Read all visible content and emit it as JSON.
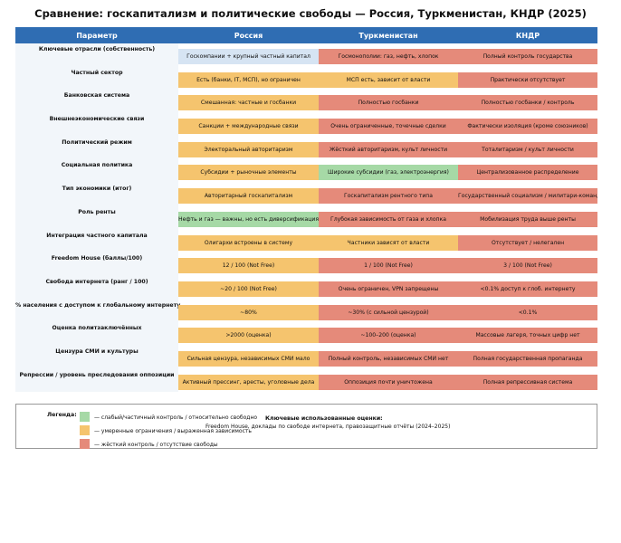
{
  "title": "Сравнение: госкапитализм и политические свободы — Россия, Туркменистан, КНДР (2025)",
  "colors": {
    "header": "#2f6db3",
    "blue": "#d6e4f3",
    "green": "#a6d9a6",
    "orange": "#f5c46e",
    "red": "#e58a7a",
    "param_bg": "#f2f6fa"
  },
  "chart_data": {
    "type": "table",
    "columns": [
      "Параметр",
      "Россия",
      "Туркменистан",
      "КНДР"
    ],
    "rows": [
      {
        "param": "Ключевые отрасли (собственность)",
        "cells": [
          {
            "text": "Госкомпании + крупный частный капитал",
            "color": "blue"
          },
          {
            "text": "Госмонополии: газ, нефть, хлопок",
            "color": "red"
          },
          {
            "text": "Полный контроль государства",
            "color": "red"
          }
        ]
      },
      {
        "param": "Частный сектор",
        "cells": [
          {
            "text": "Есть (банки, IT, МСП), но ограничен",
            "color": "orange"
          },
          {
            "text": "МСП есть, зависит от власти",
            "color": "orange"
          },
          {
            "text": "Практически отсутствует",
            "color": "red"
          }
        ]
      },
      {
        "param": "Банковская система",
        "cells": [
          {
            "text": "Смешанная: частные и госбанки",
            "color": "orange"
          },
          {
            "text": "Полностью госбанки",
            "color": "red"
          },
          {
            "text": "Полностью госбанки / контроль",
            "color": "red"
          }
        ]
      },
      {
        "param": "Внешнеэкономические связи",
        "cells": [
          {
            "text": "Санкции + международные связи",
            "color": "orange"
          },
          {
            "text": "Очень ограниченные, точечные сделки",
            "color": "red"
          },
          {
            "text": "Фактически изоляция (кроме союзников)",
            "color": "red"
          }
        ]
      },
      {
        "param": "Политический режим",
        "cells": [
          {
            "text": "Электоральный авторитаризм",
            "color": "orange"
          },
          {
            "text": "Жёсткий авторитаризм, культ личности",
            "color": "red"
          },
          {
            "text": "Тоталитаризм / культ личности",
            "color": "red"
          }
        ]
      },
      {
        "param": "Социальная политика",
        "cells": [
          {
            "text": "Субсидии + рыночные элементы",
            "color": "orange"
          },
          {
            "text": "Широкие субсидии (газ, электроэнергия)",
            "color": "green"
          },
          {
            "text": "Централизованное распределение",
            "color": "red"
          }
        ]
      },
      {
        "param": "Тип экономики (итог)",
        "cells": [
          {
            "text": "Авторитарный госкапитализм",
            "color": "orange"
          },
          {
            "text": "Госкапитализм рентного типа",
            "color": "red"
          },
          {
            "text": "Государственный социализм / милитари-командная",
            "color": "red"
          }
        ]
      },
      {
        "param": "Роль ренты",
        "cells": [
          {
            "text": "Нефть и газ — важны, но есть диверсификация",
            "color": "green"
          },
          {
            "text": "Глубокая зависимость от газа и хлопка",
            "color": "red"
          },
          {
            "text": "Мобилизация труда выше ренты",
            "color": "red"
          }
        ]
      },
      {
        "param": "Интеграция частного капитала",
        "cells": [
          {
            "text": "Олигархи встроены в систему",
            "color": "orange"
          },
          {
            "text": "Частники зависят от власти",
            "color": "orange"
          },
          {
            "text": "Отсутствует / нелегален",
            "color": "red"
          }
        ]
      },
      {
        "param": "Freedom House (баллы/100)",
        "cells": [
          {
            "text": "12 / 100 (Not Free)",
            "color": "orange"
          },
          {
            "text": "1 / 100 (Not Free)",
            "color": "red"
          },
          {
            "text": "3 / 100 (Not Free)",
            "color": "red"
          }
        ]
      },
      {
        "param": "Свобода интернета (ранг / 100)",
        "cells": [
          {
            "text": "~20 / 100 (Not Free)",
            "color": "orange"
          },
          {
            "text": "Очень ограничен, VPN запрещены",
            "color": "red"
          },
          {
            "text": "<0.1% доступ к глоб. интернету",
            "color": "red"
          }
        ]
      },
      {
        "param": "% населения с доступом к глобальному интернету",
        "cells": [
          {
            "text": "~80%",
            "color": "orange"
          },
          {
            "text": "~30% (с сильной цензурой)",
            "color": "red"
          },
          {
            "text": "<0.1%",
            "color": "red"
          }
        ]
      },
      {
        "param": "Оценка политзаключённых",
        "cells": [
          {
            "text": ">2000 (оценка)",
            "color": "orange"
          },
          {
            "text": "~100–200 (оценка)",
            "color": "red"
          },
          {
            "text": "Массовые лагеря, точных цифр нет",
            "color": "red"
          }
        ]
      },
      {
        "param": "Цензура СМИ и культуры",
        "cells": [
          {
            "text": "Сильная цензура, независимых СМИ мало",
            "color": "orange"
          },
          {
            "text": "Полный контроль, независимых СМИ нет",
            "color": "red"
          },
          {
            "text": "Полная государственная пропаганда",
            "color": "red"
          }
        ]
      },
      {
        "param": "Репрессии / уровень преследования оппозиции",
        "cells": [
          {
            "text": "Активный прессинг, аресты, уголовные дела",
            "color": "orange"
          },
          {
            "text": "Оппозиция почти уничтожена",
            "color": "red"
          },
          {
            "text": "Полная репрессивная система",
            "color": "red"
          }
        ]
      }
    ]
  },
  "legend": {
    "title": "Легенда:",
    "items": [
      {
        "color": "green",
        "text": "— слабый/частичный контроль / относительно свободно"
      },
      {
        "color": "orange",
        "text": "— умеренные ограничения / выраженная зависимость"
      },
      {
        "color": "red",
        "text": "— жёсткий контроль / отсутствие свободы"
      }
    ],
    "sources_title": "Ключевые использованные оценки:",
    "sources_text": "Freedom House, доклады по свободе интернета, правозащитные отчёты (2024–2025)"
  }
}
